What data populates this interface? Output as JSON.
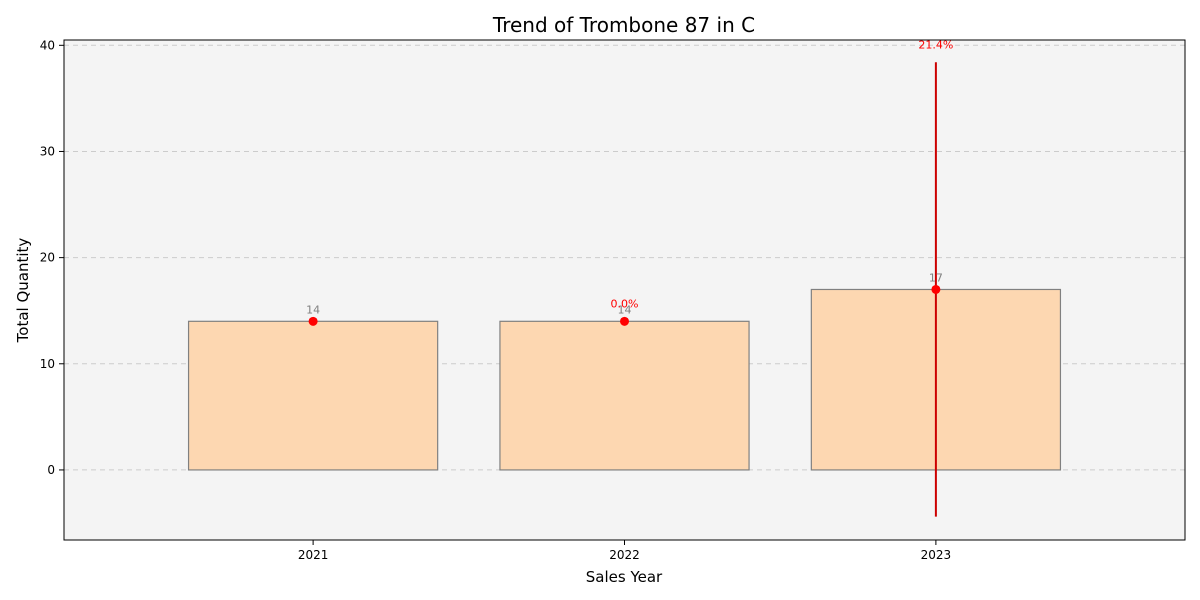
{
  "chart_data": {
    "type": "bar",
    "title": "Trend of Trombone 87 in C",
    "xlabel": "Sales Year",
    "ylabel": "Total Quantity",
    "categories": [
      "2021",
      "2022",
      "2023"
    ],
    "values": [
      14,
      14,
      17
    ],
    "value_labels": [
      "14",
      "14",
      "17"
    ],
    "pct_change_labels": [
      "",
      "0.0%",
      "21.4%"
    ],
    "pct_change_values": [
      null,
      0.0,
      21.4
    ],
    "errorbar": {
      "category": "2023",
      "low": -4.4,
      "high": 38.4
    },
    "ylim": [
      -6.6,
      40.5
    ],
    "yticks": [
      0,
      10,
      20,
      30,
      40
    ],
    "grid": true,
    "colors": {
      "bar_fill": "#fdd7b1",
      "bar_edge": "#808080",
      "marker": "#ff0000",
      "errorbar": "#cc0000",
      "plot_bg": "#f4f4f4",
      "grid": "#cccccc",
      "value_label": "#808080",
      "pct_label": "#ff0000"
    }
  }
}
